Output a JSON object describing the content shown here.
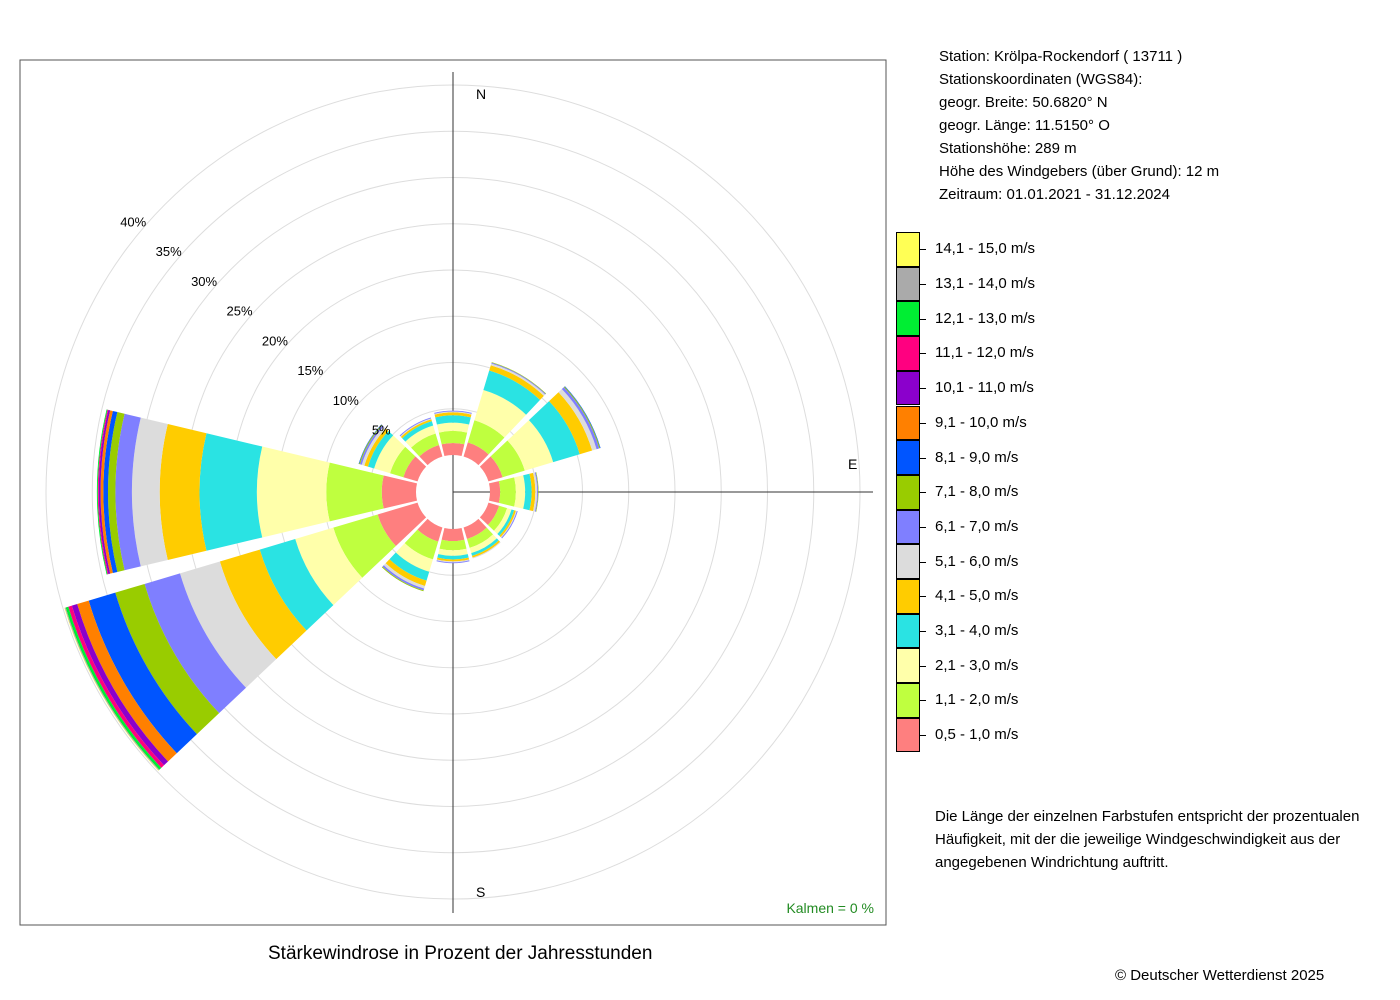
{
  "station_info": {
    "station": "Station:  Krölpa-Rockendorf  ( 13711 )",
    "coords_title": "Stationskoordinaten (WGS84):",
    "lat": "geogr. Breite: 50.6820° N",
    "lon": "geogr. Länge: 11.5150° O",
    "height": "Stationshöhe: 289 m",
    "anemometer": "Höhe des Windgebers (über Grund): 12 m",
    "period": "Zeitraum: 01.01.2021 - 31.12.2024"
  },
  "note": "Die Länge der einzelnen Farbstufen entspricht der prozentualen Häufigkeit, mit der die jeweilige Windgeschwindigkeit aus der angegebenen Windrichtung auftritt.",
  "caption": "Stärkewindrose in Prozent der Jahresstunden",
  "copyright": "© Deutscher Wetterdienst  2025",
  "calms": "Kalmen  =  0 %",
  "chart_data": {
    "type": "windrose",
    "title": "Stärkewindrose in Prozent der Jahresstunden",
    "cardinal_labels": [
      "N",
      "E",
      "S"
    ],
    "rings": [
      5,
      10,
      15,
      20,
      25,
      30,
      35,
      40
    ],
    "ring_labels": [
      "5%",
      "10%",
      "15%",
      "20%",
      "25%",
      "30%",
      "35%",
      "40%"
    ],
    "calms_percent": 0,
    "directions_deg": [
      0,
      30,
      60,
      90,
      120,
      150,
      180,
      210,
      240,
      270,
      300,
      330
    ],
    "speed_classes": [
      {
        "label": "0,5 - 1,0 m/s",
        "color": "#fe7f7f"
      },
      {
        "label": "1,1 - 2,0 m/s",
        "color": "#bfff3f"
      },
      {
        "label": "2,1 - 3,0 m/s",
        "color": "#ffffaa"
      },
      {
        "label": "3,1 - 4,0 m/s",
        "color": "#2ae3e3"
      },
      {
        "label": "4,1 - 5,0 m/s",
        "color": "#ffcc00"
      },
      {
        "label": "5,1 - 6,0 m/s",
        "color": "#dcdcdc"
      },
      {
        "label": "6,1 - 7,0 m/s",
        "color": "#7f7fff"
      },
      {
        "label": "7,1 - 8,0 m/s",
        "color": "#99cc00"
      },
      {
        "label": "8,1 - 9,0 m/s",
        "color": "#0055ff"
      },
      {
        "label": "9,1 - 10,0 m/s",
        "color": "#ff8000"
      },
      {
        "label": "10,1 - 11,0 m/s",
        "color": "#8b00cc"
      },
      {
        "label": "11,1 - 12,0 m/s",
        "color": "#ff0080"
      },
      {
        "label": "12,1 - 13,0 m/s",
        "color": "#00ee33"
      },
      {
        "label": "13,1 - 14,0 m/s",
        "color": "#aaaaaa"
      },
      {
        "label": "14,1 - 15,0 m/s",
        "color": "#ffff55"
      }
    ],
    "series": [
      {
        "direction": 0,
        "values": [
          1.3,
          1.3,
          0.9,
          0.8,
          0.3,
          0.1,
          0.1,
          0,
          0,
          0,
          0,
          0,
          0,
          0,
          0
        ]
      },
      {
        "direction": 30,
        "values": [
          1.6,
          2.5,
          3.4,
          2.2,
          0.6,
          0.2,
          0.1,
          0.05,
          0,
          0,
          0,
          0,
          0,
          0,
          0
        ]
      },
      {
        "direction": 60,
        "values": [
          1.6,
          2.5,
          3.2,
          3.0,
          1.4,
          0.5,
          0.3,
          0.1,
          0.05,
          0,
          0,
          0,
          0,
          0,
          0
        ]
      },
      {
        "direction": 90,
        "values": [
          1.1,
          1.7,
          1.0,
          0.7,
          0.4,
          0.2,
          0.1,
          0.05,
          0,
          0,
          0,
          0,
          0,
          0,
          0
        ]
      },
      {
        "direction": 120,
        "values": [
          1.2,
          0.9,
          0.5,
          0.3,
          0.2,
          0.1,
          0.1,
          0,
          0,
          0,
          0,
          0,
          0,
          0,
          0
        ]
      },
      {
        "direction": 150,
        "values": [
          1.3,
          1.0,
          0.6,
          0.3,
          0.2,
          0.1,
          0,
          0,
          0,
          0,
          0,
          0,
          0,
          0,
          0
        ]
      },
      {
        "direction": 180,
        "values": [
          1.3,
          1.0,
          0.6,
          0.4,
          0.2,
          0.1,
          0.1,
          0,
          0,
          0,
          0,
          0,
          0,
          0,
          0
        ]
      },
      {
        "direction": 210,
        "values": [
          1.6,
          2.0,
          1.4,
          1.0,
          0.6,
          0.3,
          0.2,
          0.1,
          0,
          0,
          0,
          0,
          0,
          0,
          0
        ]
      },
      {
        "direction": 240,
        "values": [
          4.5,
          5.0,
          4.3,
          4.0,
          4.5,
          4.5,
          4.0,
          3.3,
          3.0,
          1.3,
          0.6,
          0.4,
          0.3,
          0.1,
          0.05
        ]
      },
      {
        "direction": 270,
        "values": [
          3.7,
          6.0,
          7.5,
          6.2,
          4.3,
          3.0,
          1.8,
          0.8,
          0.5,
          0.3,
          0.2,
          0.1,
          0.1,
          0,
          0
        ]
      },
      {
        "direction": 300,
        "values": [
          1.6,
          1.5,
          1.8,
          0.7,
          0.4,
          0.3,
          0.2,
          0.1,
          0.05,
          0,
          0,
          0,
          0,
          0,
          0
        ]
      },
      {
        "direction": 330,
        "values": [
          1.3,
          1.3,
          0.9,
          0.5,
          0.2,
          0.1,
          0.1,
          0,
          0,
          0,
          0,
          0,
          0,
          0,
          0
        ]
      }
    ]
  }
}
